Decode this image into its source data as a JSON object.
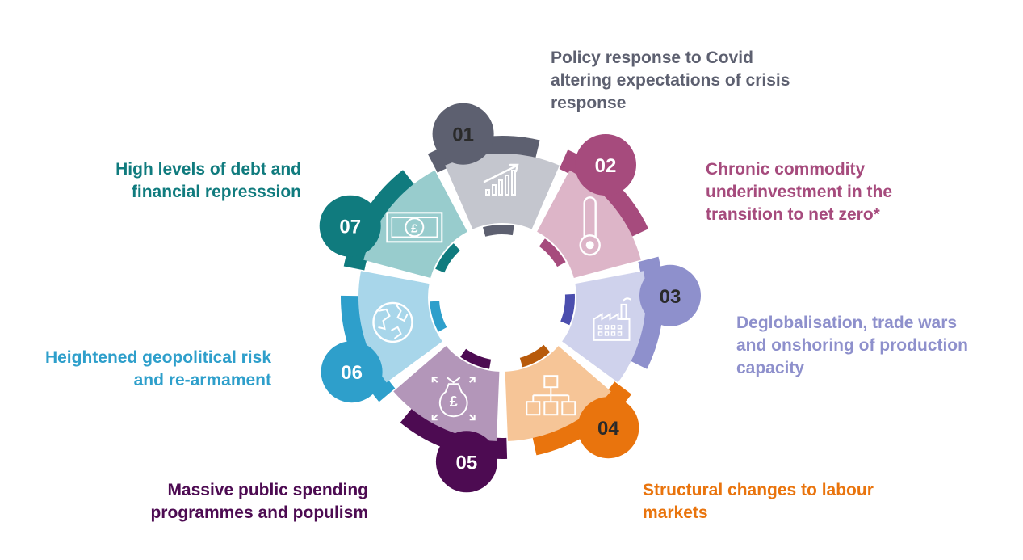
{
  "colors": {
    "s01": {
      "dark": "#5d6070",
      "light": "#c4c6ce"
    },
    "s02": {
      "dark": "#a64b7d",
      "light": "#ddb5c8"
    },
    "s03": {
      "dark": "#8e90cc",
      "light": "#cfd2ec",
      "accent": "#4b4eae"
    },
    "s04": {
      "dark": "#e9740d",
      "light": "#f6c597",
      "accent": "#b85a0a"
    },
    "s05": {
      "dark": "#4d0b52",
      "light": "#b396b9"
    },
    "s06": {
      "dark": "#2e9fcb",
      "light": "#a8d6ea"
    },
    "s07": {
      "dark": "#107b7e",
      "light": "#98cccd"
    }
  },
  "segments": [
    {
      "number": "01",
      "caption": "Policy response to Covid\naltering expectations of crisis\nresponse",
      "icon": "growth-chart-icon"
    },
    {
      "number": "02",
      "caption": "Chronic commodity\nunderinvestment in the\ntransition to net zero*",
      "icon": "thermometer-icon"
    },
    {
      "number": "03",
      "caption": "Deglobalisation, trade wars\nand onshoring of production\ncapacity",
      "icon": "factory-icon"
    },
    {
      "number": "04",
      "caption": "Structural  changes  to  labour\nmarkets",
      "icon": "org-chart-icon"
    },
    {
      "number": "05",
      "caption": "Massive public spending\nprogrammes and populism",
      "icon": "money-bag-icon"
    },
    {
      "number": "06",
      "caption": "Heightened geopolitical risk\nand re-armament",
      "icon": "globe-icon"
    },
    {
      "number": "07",
      "caption": "High levels of debt and\nfinancial represssion",
      "icon": "banknote-icon"
    }
  ]
}
